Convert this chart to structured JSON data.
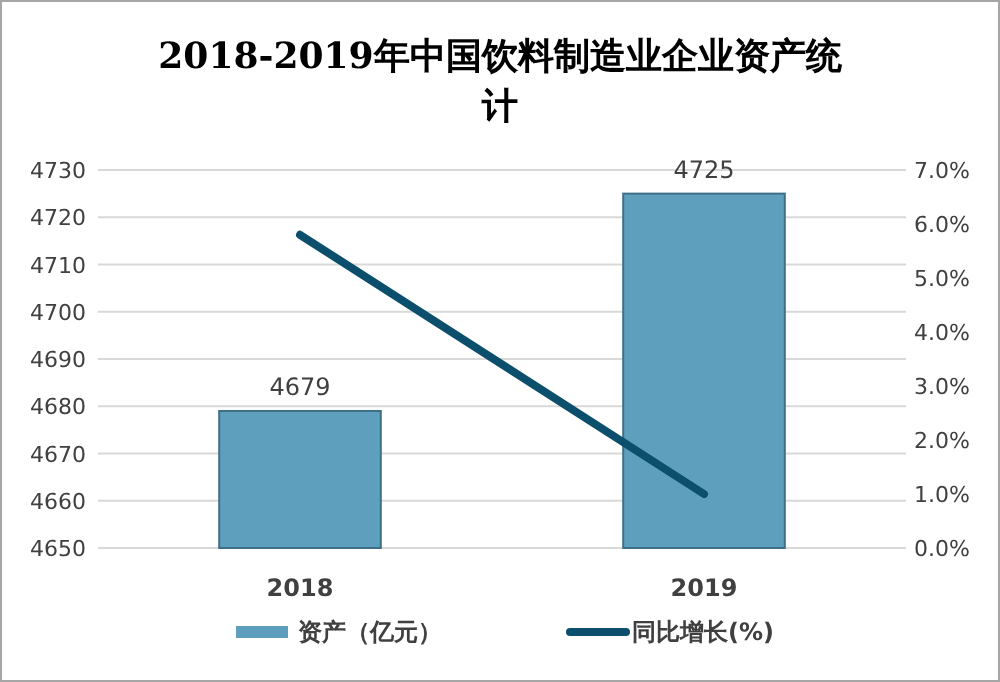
{
  "chart_data": {
    "type": "bar",
    "title": "2018-2019年中国饮料制造业企业资产统计",
    "categories": [
      "2018",
      "2019"
    ],
    "series": [
      {
        "name": "资产（亿元）",
        "color": "#5f9fbe",
        "values": [
          4679,
          4725
        ],
        "value_labels": [
          "4679",
          "4725"
        ]
      },
      {
        "name": "同比增长(%)",
        "type": "line",
        "axis": "y2",
        "color": "#0b4f6c",
        "values": [
          5.8,
          1.0
        ]
      }
    ],
    "ylim": [
      4650,
      4730
    ],
    "yticks": [
      4650,
      4660,
      4670,
      4680,
      4690,
      4700,
      4710,
      4720,
      4730
    ],
    "y2lim": [
      0,
      7
    ],
    "y2ticks": [
      {
        "value": 0,
        "label": "0.0%"
      },
      {
        "value": 1,
        "label": "1.0%"
      },
      {
        "value": 2,
        "label": "2.0%"
      },
      {
        "value": 3,
        "label": "3.0%"
      },
      {
        "value": 4,
        "label": "4.0%"
      },
      {
        "value": 5,
        "label": "5.0%"
      },
      {
        "value": 6,
        "label": "6.0%"
      },
      {
        "value": 7,
        "label": "7.0%"
      }
    ],
    "grid": "y",
    "legend": "bottom",
    "marker": "none",
    "line_style": "solid"
  }
}
